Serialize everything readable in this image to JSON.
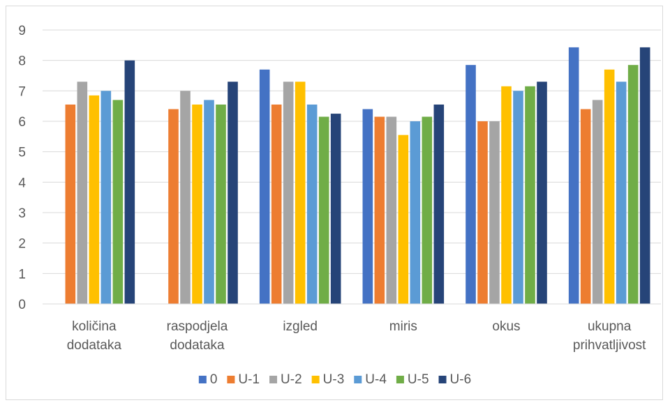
{
  "chart_data": {
    "type": "bar",
    "categories": [
      [
        "količina",
        "dodataka"
      ],
      [
        "raspodjela",
        "dodataka"
      ],
      [
        "izgled"
      ],
      [
        "miris"
      ],
      [
        "okus"
      ],
      [
        "ukupna",
        "prihvatljivost"
      ]
    ],
    "series": [
      {
        "name": "0",
        "color": "#4472c4",
        "values": [
          0,
          0,
          7.7,
          6.4,
          7.85,
          8.43
        ]
      },
      {
        "name": "U-1",
        "color": "#ed7d31",
        "values": [
          6.55,
          6.4,
          6.55,
          6.15,
          6.0,
          6.4
        ]
      },
      {
        "name": "U-2",
        "color": "#a5a5a5",
        "values": [
          7.3,
          7.0,
          7.3,
          6.15,
          6.0,
          6.7
        ]
      },
      {
        "name": "U-3",
        "color": "#ffc000",
        "values": [
          6.85,
          6.55,
          7.3,
          5.55,
          7.15,
          7.7
        ]
      },
      {
        "name": "U-4",
        "color": "#5b9bd5",
        "values": [
          7.0,
          6.7,
          6.55,
          6.0,
          7.0,
          7.3
        ]
      },
      {
        "name": "U-5",
        "color": "#70ad47",
        "values": [
          6.7,
          6.55,
          6.15,
          6.15,
          7.15,
          7.85
        ]
      },
      {
        "name": "U-6",
        "color": "#264478",
        "values": [
          8.0,
          7.3,
          6.25,
          6.55,
          7.3,
          8.43
        ]
      }
    ],
    "ylim": [
      0,
      9
    ],
    "yticks": [
      "0",
      "1",
      "2",
      "3",
      "4",
      "5",
      "6",
      "7",
      "8",
      "9"
    ],
    "grid": true,
    "legend": "bottom"
  }
}
